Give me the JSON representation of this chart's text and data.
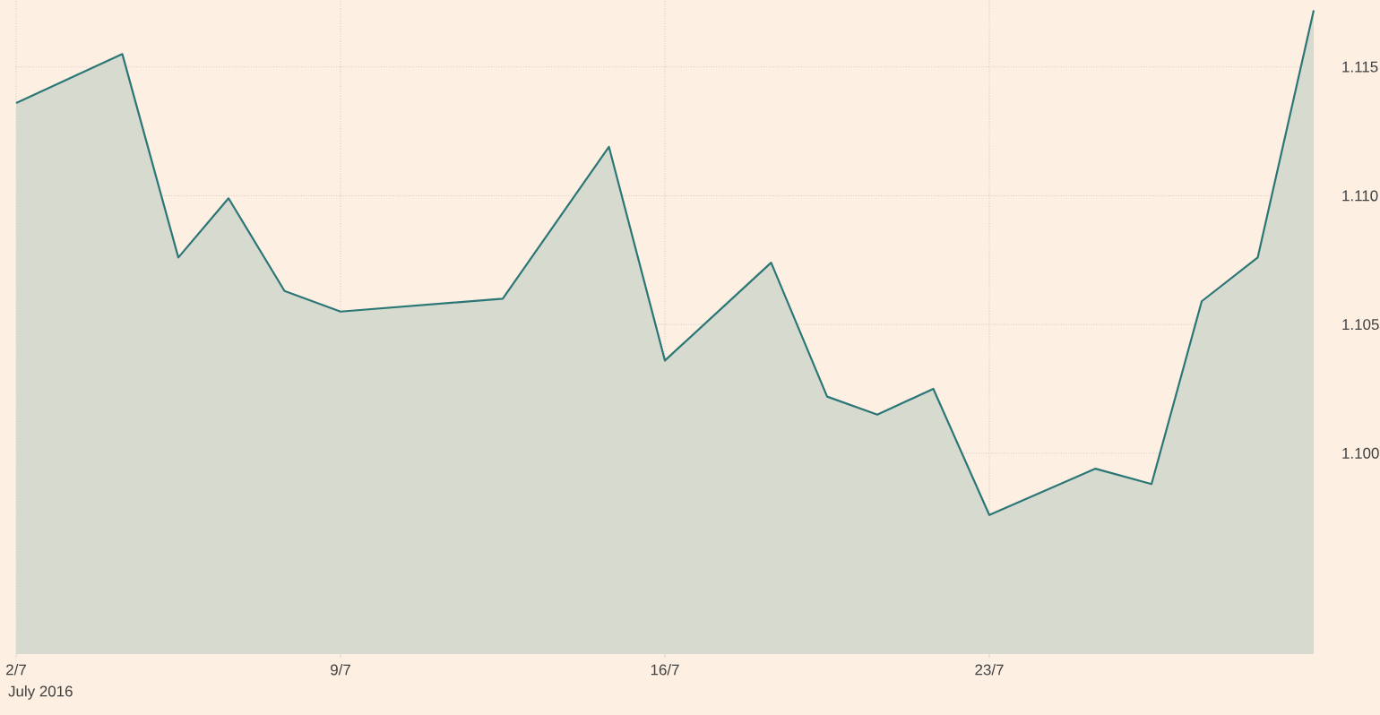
{
  "chart_data": {
    "type": "area",
    "xlabel": "July 2016",
    "x": [
      "2016-07-02",
      "2016-07-04T07:00",
      "2016-07-05T12:00",
      "2016-07-06T14:00",
      "2016-07-07T19:00",
      "2016-07-09",
      "2016-07-12T12:00",
      "2016-07-14T19:00",
      "2016-07-16",
      "2016-07-18T07:00",
      "2016-07-19T12:00",
      "2016-07-20T14:00",
      "2016-07-21T19:00",
      "2016-07-23",
      "2016-07-25T07:00",
      "2016-07-26T12:00",
      "2016-07-27T14:00",
      "2016-07-28T19:00",
      "2016-07-30"
    ],
    "series": [
      {
        "color": "#2b7676",
        "values": [
          1.1136,
          1.1155,
          1.1076,
          1.1099,
          1.1063,
          1.1055,
          1.106,
          1.1119,
          1.1036,
          1.1074,
          1.1022,
          1.1015,
          1.1025,
          1.0976,
          1.0994,
          1.0988,
          1.1059,
          1.1076,
          1.1172
        ]
      }
    ],
    "xlim": [
      "2016-07-02",
      "2016-07-30"
    ],
    "ylim": [
      1.0922,
      1.1176
    ],
    "xticks": [
      {
        "value": "2016-07-02",
        "label": "2/7"
      },
      {
        "value": "2016-07-09",
        "label": "9/7"
      },
      {
        "value": "2016-07-16",
        "label": "16/7"
      },
      {
        "value": "2016-07-23",
        "label": "23/7"
      }
    ],
    "yticks": [
      {
        "value": 1.1,
        "label": "1.100"
      },
      {
        "value": 1.105,
        "label": "1.105"
      },
      {
        "value": 1.11,
        "label": "1.110"
      },
      {
        "value": 1.115,
        "label": "1.115"
      }
    ],
    "grid": true,
    "marker": "none",
    "line_style": "solid"
  }
}
